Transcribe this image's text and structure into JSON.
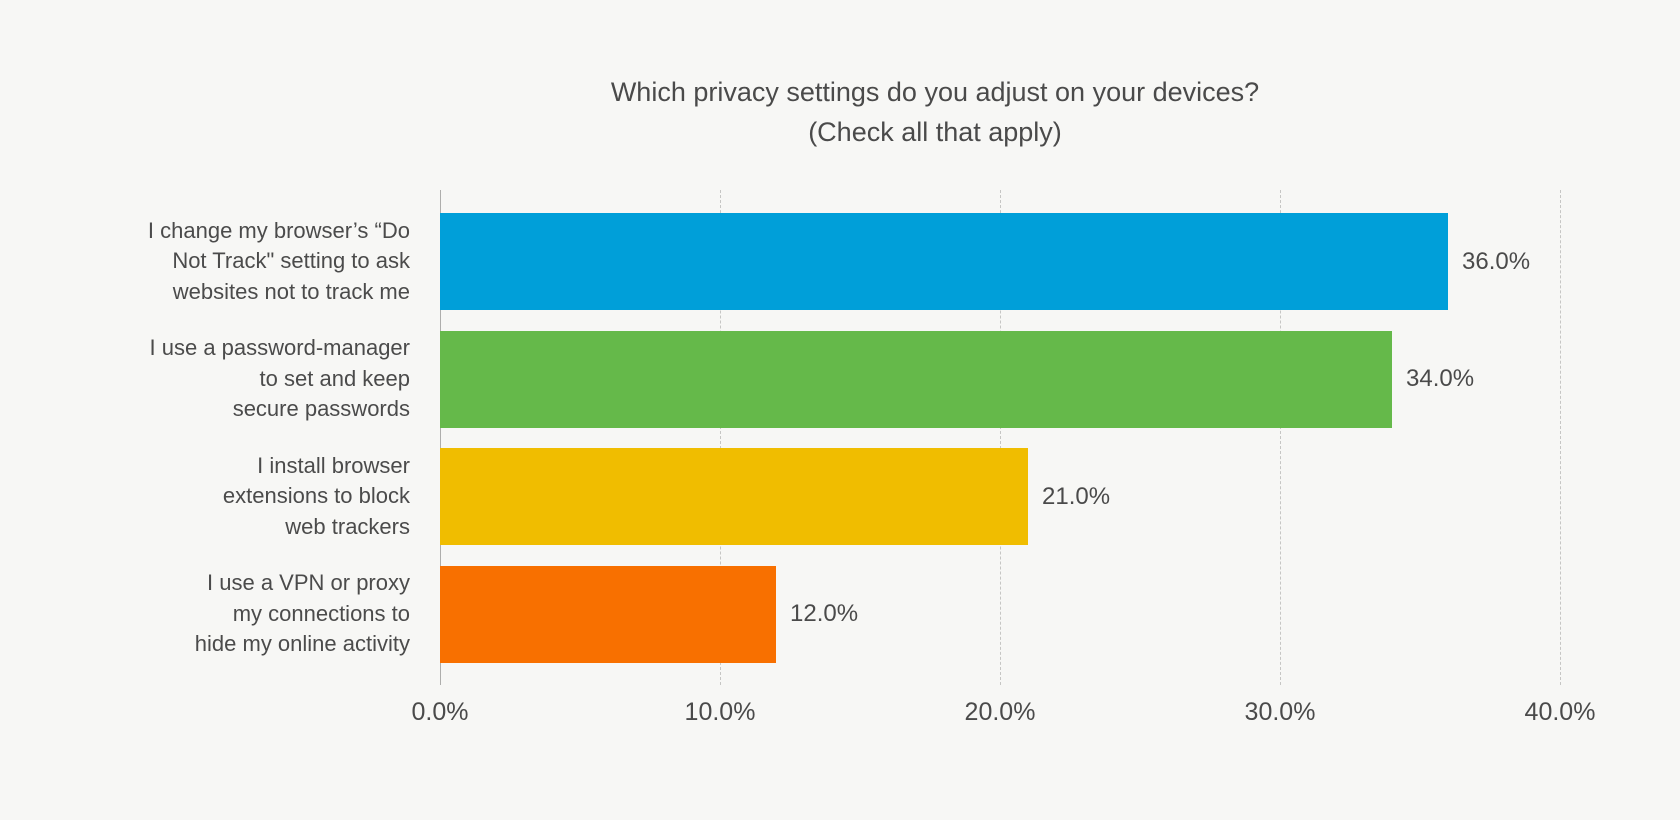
{
  "figure": {
    "background": "#f7f7f5"
  },
  "chart_data": {
    "type": "bar",
    "orientation": "horizontal",
    "title": "Which privacy settings do you adjust on your devices?\n(Check all that apply)",
    "categories": [
      "I change my browser’s “Do\nNot Track\" setting to ask\nwebsites not to track me",
      "I use a password-manager\nto set and keep\nsecure passwords",
      "I install browser\nextensions to block\nweb trackers",
      "I use a VPN or proxy\nmy connections to\nhide my online activity"
    ],
    "values": [
      36.0,
      34.0,
      21.0,
      12.0
    ],
    "value_labels": [
      "36.0%",
      "34.0%",
      "21.0%",
      "12.0%"
    ],
    "bar_colors": [
      "#009fd9",
      "#65b94a",
      "#f0bd00",
      "#f87000"
    ],
    "xlim": [
      0,
      40
    ],
    "x_ticks": [
      0,
      10,
      20,
      30,
      40
    ],
    "x_tick_labels": [
      "0.0%",
      "10.0%",
      "20.0%",
      "30.0%",
      "40.0%"
    ],
    "xlabel": "",
    "ylabel": "",
    "grid": "vertical-dashed",
    "legend": "none",
    "text_color": "#4a4a4a",
    "gridline_color": "#c6c6c4",
    "axis_line_color": "#aeaeac"
  }
}
